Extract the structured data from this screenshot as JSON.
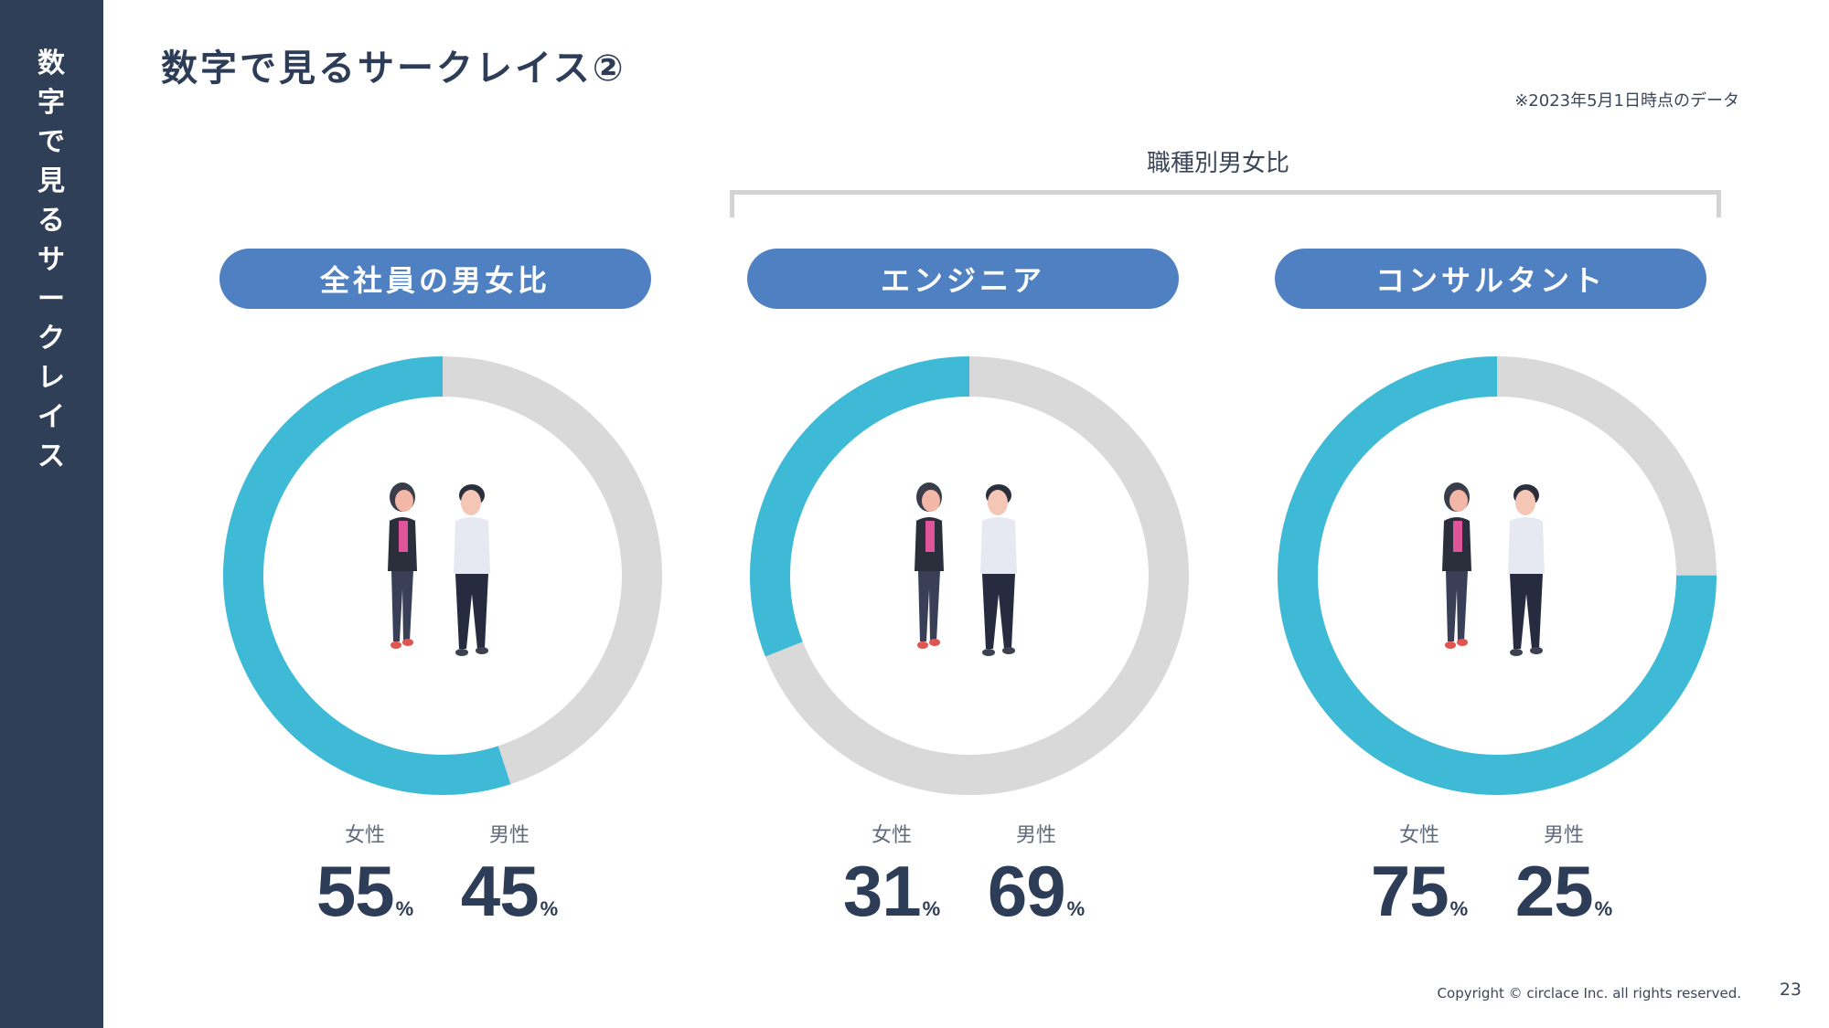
{
  "sidebar": {
    "title": "数字で見るサークレイス"
  },
  "header": {
    "title": "数字で見るサークレイス②",
    "date_note": "※2023年5月1日時点のデータ"
  },
  "group_label": "職種別男女比",
  "colors": {
    "female": "#3ebad6",
    "male": "#d9d9d9",
    "pill": "#4f80c2",
    "sidebar": "#2f3f57"
  },
  "chart_data": [
    {
      "type": "pie",
      "title": "全社員の男女比",
      "categories": [
        "女性",
        "男性"
      ],
      "values": [
        55,
        45
      ],
      "unit": "%"
    },
    {
      "type": "pie",
      "title": "エンジニア",
      "categories": [
        "女性",
        "男性"
      ],
      "values": [
        31,
        69
      ],
      "unit": "%"
    },
    {
      "type": "pie",
      "title": "コンサルタント",
      "categories": [
        "女性",
        "男性"
      ],
      "values": [
        75,
        25
      ],
      "unit": "%"
    }
  ],
  "footer": {
    "copyright": "Copyright © circlace Inc. all rights reserved.",
    "page_number": "23"
  }
}
